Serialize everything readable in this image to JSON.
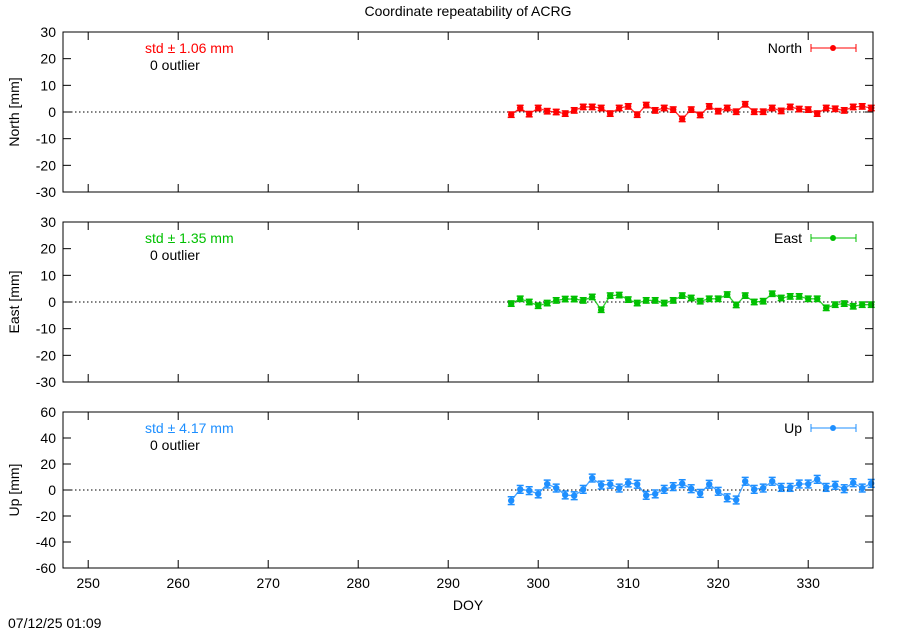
{
  "chart_data": {
    "type": "scatter",
    "title": "Coordinate repeatability of ACRG",
    "xlabel": "DOY",
    "xlim": [
      247.2,
      337.2
    ],
    "xticks": [
      250,
      260,
      270,
      280,
      290,
      300,
      310,
      320,
      330
    ],
    "timestamp": "07/12/25 01:09",
    "x": [
      297,
      298,
      299,
      300,
      301,
      302,
      303,
      304,
      305,
      306,
      307,
      308,
      309,
      310,
      311,
      312,
      313,
      314,
      315,
      316,
      317,
      318,
      319,
      320,
      321,
      322,
      323,
      324,
      325,
      326,
      327,
      328,
      329,
      330,
      331,
      332,
      333,
      334,
      335,
      336,
      337
    ],
    "panels": [
      {
        "name": "North",
        "ylabel": "North [mm]",
        "ylim": [
          -30,
          30
        ],
        "yticks": [
          -30,
          -20,
          -10,
          0,
          10,
          20,
          30
        ],
        "color": "#ff0000",
        "std_text": "std ± 1.06 mm",
        "outlier_text": "0 outlier",
        "error": 1.0,
        "values": [
          -1,
          1.5,
          -0.8,
          1.5,
          0.3,
          0,
          -0.6,
          0.6,
          1.9,
          1.9,
          1.5,
          -0.6,
          1.5,
          2.1,
          -1,
          2.6,
          0.6,
          1.5,
          0.9,
          -2.6,
          0.9,
          -1.1,
          2.1,
          0.3,
          1.5,
          0.1,
          2.9,
          0.1,
          0.1,
          1.5,
          0.4,
          1.9,
          1.1,
          0.9,
          -0.6,
          1.5,
          1.2,
          0.6,
          1.9,
          2.1,
          1.5
        ]
      },
      {
        "name": "East",
        "ylabel": "East [mm]",
        "ylim": [
          -30,
          30
        ],
        "yticks": [
          -30,
          -20,
          -10,
          0,
          10,
          20,
          30
        ],
        "color": "#00c000",
        "std_text": "std ± 1.35 mm",
        "outlier_text": "0 outlier",
        "error": 1.0,
        "values": [
          -0.6,
          1.2,
          0,
          -1.4,
          -0.4,
          0.6,
          1.1,
          1.1,
          0.6,
          1.9,
          -2.9,
          2.4,
          2.6,
          0.9,
          -0.4,
          0.6,
          0.6,
          -0.4,
          0.6,
          2.4,
          1.5,
          0.3,
          1.2,
          1.2,
          2.8,
          -1.1,
          2.4,
          0,
          0.3,
          3.1,
          1.5,
          2.1,
          2.1,
          1.2,
          1.2,
          -2.2,
          -1,
          -0.6,
          -1.6,
          -1,
          -1
        ]
      },
      {
        "name": "Up",
        "ylabel": "Up [mm]",
        "ylim": [
          -60,
          60
        ],
        "yticks": [
          -60,
          -40,
          -20,
          0,
          20,
          40,
          60
        ],
        "color": "#1e8fff",
        "std_text": "std ± 4.17 mm",
        "outlier_text": "0 outlier",
        "error": 3.0,
        "values": [
          -8.2,
          0.5,
          -0.5,
          -3,
          4.6,
          1.5,
          -3.8,
          -4.4,
          0.5,
          9.2,
          3.8,
          4.4,
          1.5,
          5.4,
          4.4,
          -4.1,
          -3,
          0.5,
          2.6,
          4.9,
          1,
          -2.6,
          4.4,
          -1,
          -6,
          -7.7,
          6.7,
          0.5,
          1.5,
          6.7,
          2,
          2,
          4.6,
          4.6,
          8.2,
          2,
          3.6,
          1,
          5.6,
          1.5,
          5.1
        ]
      }
    ]
  }
}
